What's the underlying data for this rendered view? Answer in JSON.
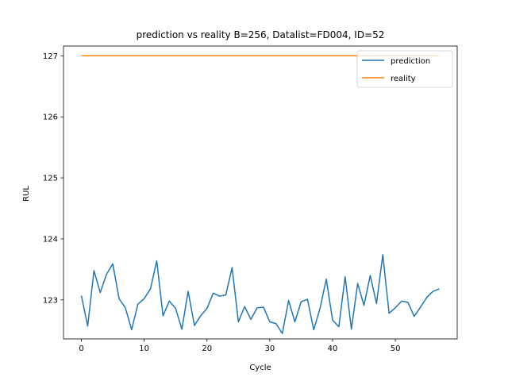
{
  "chart_data": {
    "type": "line",
    "title": "prediction vs reality B=256, Datalist=FD004, ID=52",
    "xlabel": "Cycle",
    "ylabel": "RUL",
    "xlim": [
      -2.85,
      59.85
    ],
    "ylim": [
      122.36,
      127.16
    ],
    "xticks": [
      0,
      10,
      20,
      30,
      40,
      50
    ],
    "yticks": [
      123,
      124,
      125,
      126,
      127
    ],
    "grid": false,
    "legend_position": "upper right",
    "x": [
      0,
      1,
      2,
      3,
      4,
      5,
      6,
      7,
      8,
      9,
      10,
      11,
      12,
      13,
      14,
      15,
      16,
      17,
      18,
      19,
      20,
      21,
      22,
      23,
      24,
      25,
      26,
      27,
      28,
      29,
      30,
      31,
      32,
      33,
      34,
      35,
      36,
      37,
      38,
      39,
      40,
      41,
      42,
      43,
      44,
      45,
      46,
      47,
      48,
      49,
      50,
      51,
      52,
      53,
      54,
      55,
      56,
      57
    ],
    "series": [
      {
        "name": "prediction",
        "color": "#1f77b4",
        "values": [
          123.07,
          122.57,
          123.48,
          123.12,
          123.42,
          123.59,
          123.02,
          122.87,
          122.51,
          122.93,
          123.02,
          123.18,
          123.64,
          122.74,
          122.98,
          122.86,
          122.52,
          123.14,
          122.58,
          122.74,
          122.86,
          123.11,
          123.06,
          123.08,
          123.53,
          122.64,
          122.89,
          122.68,
          122.87,
          122.88,
          122.64,
          122.61,
          122.45,
          122.99,
          122.64,
          122.97,
          123.01,
          122.51,
          122.86,
          123.34,
          122.67,
          122.56,
          123.38,
          122.52,
          123.27,
          122.91,
          123.4,
          122.94,
          123.74,
          122.78,
          122.87,
          122.98,
          122.96,
          122.73,
          122.88,
          123.04,
          123.14,
          123.18
        ]
      },
      {
        "name": "reality",
        "color": "#ff7f0e",
        "values": [
          127,
          127,
          127,
          127,
          127,
          127,
          127,
          127,
          127,
          127,
          127,
          127,
          127,
          127,
          127,
          127,
          127,
          127,
          127,
          127,
          127,
          127,
          127,
          127,
          127,
          127,
          127,
          127,
          127,
          127,
          127,
          127,
          127,
          127,
          127,
          127,
          127,
          127,
          127,
          127,
          127,
          127,
          127,
          127,
          127,
          127,
          127,
          127,
          127,
          127,
          127,
          127,
          127,
          127,
          127,
          127,
          127,
          127
        ]
      }
    ]
  }
}
